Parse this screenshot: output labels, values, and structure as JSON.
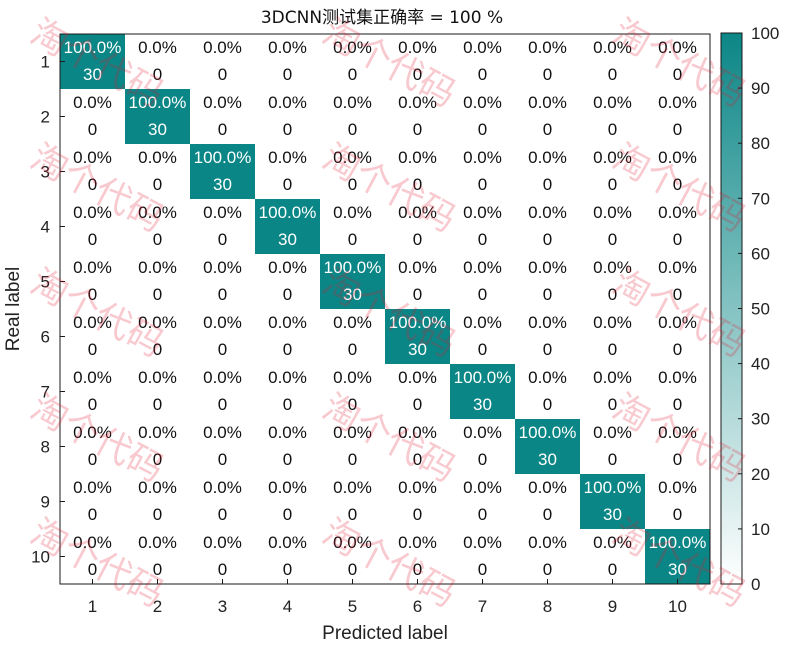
{
  "chart_data": {
    "type": "heatmap",
    "title": "3DCNN测试集正确率 = 100 %",
    "xlabel": "Predicted label",
    "ylabel": "Real label",
    "x_categories": [
      "1",
      "2",
      "3",
      "4",
      "5",
      "6",
      "7",
      "8",
      "9",
      "10"
    ],
    "y_categories": [
      "1",
      "2",
      "3",
      "4",
      "5",
      "6",
      "7",
      "8",
      "9",
      "10"
    ],
    "percent_matrix": [
      [
        "100.0%",
        "0.0%",
        "0.0%",
        "0.0%",
        "0.0%",
        "0.0%",
        "0.0%",
        "0.0%",
        "0.0%",
        "0.0%"
      ],
      [
        "0.0%",
        "100.0%",
        "0.0%",
        "0.0%",
        "0.0%",
        "0.0%",
        "0.0%",
        "0.0%",
        "0.0%",
        "0.0%"
      ],
      [
        "0.0%",
        "0.0%",
        "100.0%",
        "0.0%",
        "0.0%",
        "0.0%",
        "0.0%",
        "0.0%",
        "0.0%",
        "0.0%"
      ],
      [
        "0.0%",
        "0.0%",
        "0.0%",
        "100.0%",
        "0.0%",
        "0.0%",
        "0.0%",
        "0.0%",
        "0.0%",
        "0.0%"
      ],
      [
        "0.0%",
        "0.0%",
        "0.0%",
        "0.0%",
        "100.0%",
        "0.0%",
        "0.0%",
        "0.0%",
        "0.0%",
        "0.0%"
      ],
      [
        "0.0%",
        "0.0%",
        "0.0%",
        "0.0%",
        "0.0%",
        "100.0%",
        "0.0%",
        "0.0%",
        "0.0%",
        "0.0%"
      ],
      [
        "0.0%",
        "0.0%",
        "0.0%",
        "0.0%",
        "0.0%",
        "0.0%",
        "100.0%",
        "0.0%",
        "0.0%",
        "0.0%"
      ],
      [
        "0.0%",
        "0.0%",
        "0.0%",
        "0.0%",
        "0.0%",
        "0.0%",
        "0.0%",
        "100.0%",
        "0.0%",
        "0.0%"
      ],
      [
        "0.0%",
        "0.0%",
        "0.0%",
        "0.0%",
        "0.0%",
        "0.0%",
        "0.0%",
        "0.0%",
        "100.0%",
        "0.0%"
      ],
      [
        "0.0%",
        "0.0%",
        "0.0%",
        "0.0%",
        "0.0%",
        "0.0%",
        "0.0%",
        "0.0%",
        "0.0%",
        "100.0%"
      ]
    ],
    "count_matrix": [
      [
        30,
        0,
        0,
        0,
        0,
        0,
        0,
        0,
        0,
        0
      ],
      [
        0,
        30,
        0,
        0,
        0,
        0,
        0,
        0,
        0,
        0
      ],
      [
        0,
        0,
        30,
        0,
        0,
        0,
        0,
        0,
        0,
        0
      ],
      [
        0,
        0,
        0,
        30,
        0,
        0,
        0,
        0,
        0,
        0
      ],
      [
        0,
        0,
        0,
        0,
        30,
        0,
        0,
        0,
        0,
        0
      ],
      [
        0,
        0,
        0,
        0,
        0,
        30,
        0,
        0,
        0,
        0
      ],
      [
        0,
        0,
        0,
        0,
        0,
        0,
        30,
        0,
        0,
        0
      ],
      [
        0,
        0,
        0,
        0,
        0,
        0,
        0,
        30,
        0,
        0
      ],
      [
        0,
        0,
        0,
        0,
        0,
        0,
        0,
        0,
        30,
        0
      ],
      [
        0,
        0,
        0,
        0,
        0,
        0,
        0,
        0,
        0,
        30
      ]
    ],
    "value_matrix": [
      [
        100,
        0,
        0,
        0,
        0,
        0,
        0,
        0,
        0,
        0
      ],
      [
        0,
        100,
        0,
        0,
        0,
        0,
        0,
        0,
        0,
        0
      ],
      [
        0,
        0,
        100,
        0,
        0,
        0,
        0,
        0,
        0,
        0
      ],
      [
        0,
        0,
        0,
        100,
        0,
        0,
        0,
        0,
        0,
        0
      ],
      [
        0,
        0,
        0,
        0,
        100,
        0,
        0,
        0,
        0,
        0
      ],
      [
        0,
        0,
        0,
        0,
        0,
        100,
        0,
        0,
        0,
        0
      ],
      [
        0,
        0,
        0,
        0,
        0,
        0,
        100,
        0,
        0,
        0
      ],
      [
        0,
        0,
        0,
        0,
        0,
        0,
        0,
        100,
        0,
        0
      ],
      [
        0,
        0,
        0,
        0,
        0,
        0,
        0,
        0,
        100,
        0
      ],
      [
        0,
        0,
        0,
        0,
        0,
        0,
        0,
        0,
        0,
        100
      ]
    ],
    "colorbar": {
      "range": [
        0,
        100
      ],
      "ticks": [
        "0",
        "10",
        "20",
        "30",
        "40",
        "50",
        "60",
        "70",
        "80",
        "90",
        "100"
      ],
      "color_low": "#ffffff",
      "color_high": "#0b8686"
    },
    "text_color_on_high": "#ffffff",
    "text_color_on_low": "#111111",
    "grid": false,
    "legend": "none",
    "watermark_text": "淘个代码"
  }
}
